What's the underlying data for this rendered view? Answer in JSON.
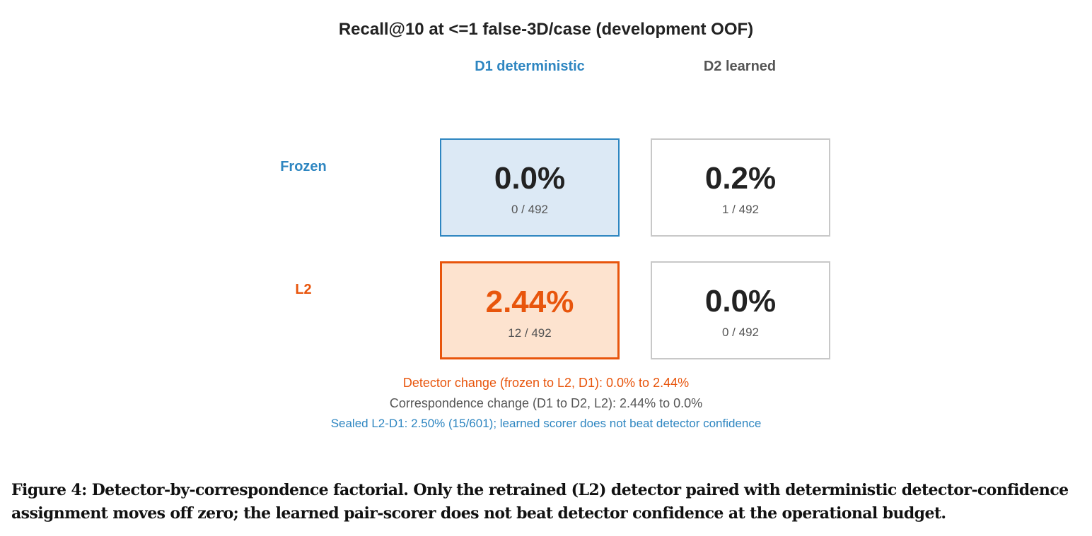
{
  "figure": {
    "title": "Recall@10 at <=1 false-3D/case (development OOF)",
    "columns": [
      {
        "label": "D1 deterministic",
        "color": "#2e86c1"
      },
      {
        "label": "D2 learned",
        "color": "#555555"
      }
    ],
    "rows": [
      {
        "label": "Frozen",
        "color": "#2e86c1"
      },
      {
        "label": "L2",
        "color": "#e8550c"
      }
    ],
    "cells": [
      {
        "row": "Frozen",
        "col": "D1 deterministic",
        "value": "0.0%",
        "fraction": "0 / 492",
        "highlight": "blue"
      },
      {
        "row": "Frozen",
        "col": "D2 learned",
        "value": "0.2%",
        "fraction": "1 / 492",
        "highlight": "none"
      },
      {
        "row": "L2",
        "col": "D1 deterministic",
        "value": "2.44%",
        "fraction": "12 / 492",
        "highlight": "orange"
      },
      {
        "row": "L2",
        "col": "D2 learned",
        "value": "0.0%",
        "fraction": "0 / 492",
        "highlight": "none"
      }
    ],
    "notes": [
      {
        "text": "Detector change (frozen to L2, D1): 0.0% to 2.44%",
        "color": "#e8550c"
      },
      {
        "text": "Correspondence change (D1 to D2, L2): 2.44% to 0.0%",
        "color": "#555555"
      },
      {
        "text": "Sealed L2-D1: 2.50% (15/601); learned scorer does not beat detector confidence",
        "color": "#2e86c1"
      }
    ],
    "colors": {
      "blue_fill": "#dce9f5",
      "blue_border": "#2e86c1",
      "orange_fill": "#fde3cf",
      "orange_border": "#e8550c",
      "orange_text": "#e8550c"
    }
  },
  "caption": "Figure 4: Detector-by-correspondence factorial. Only the retrained (L2) detector paired with deterministic detector-confidence assignment moves off zero; the learned pair-scorer does not beat detector confidence at the operational budget."
}
